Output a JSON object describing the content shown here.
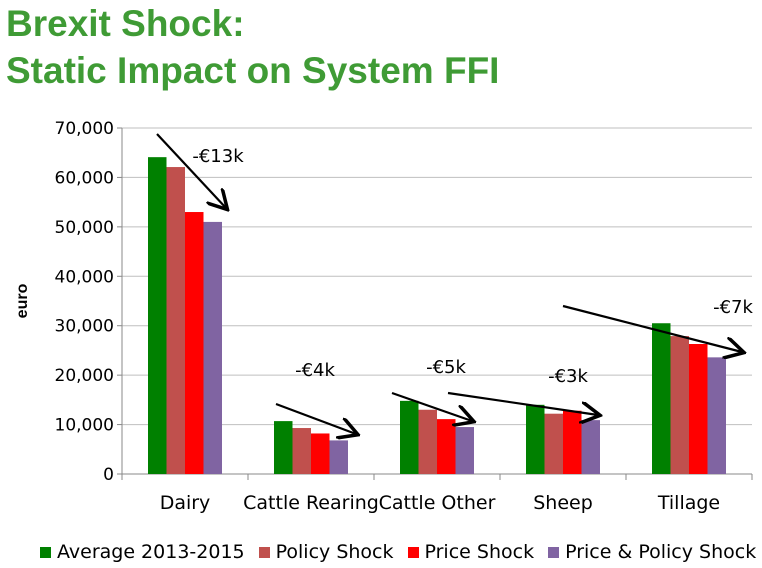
{
  "title_line1": "Brexit Shock:",
  "title_line2": "Static Impact on System FFI",
  "chart_data": {
    "type": "bar",
    "title": "Brexit Shock: Static Impact on System FFI",
    "xlabel": "",
    "ylabel": "euro",
    "ylim": [
      0,
      70000
    ],
    "yticks": [
      0,
      10000,
      20000,
      30000,
      40000,
      50000,
      60000,
      70000
    ],
    "ytick_labels": [
      "0",
      "10,000",
      "20,000",
      "30,000",
      "40,000",
      "50,000",
      "60,000",
      "70,000"
    ],
    "grid": true,
    "legend_position": "bottom",
    "categories": [
      "Dairy",
      "Cattle Rearing",
      "Cattle Other",
      "Sheep",
      "Tillage"
    ],
    "series": [
      {
        "name": "Average 2013-2015",
        "color": "#008000",
        "values": [
          64100,
          10700,
          14800,
          14000,
          30500
        ]
      },
      {
        "name": "Policy Shock",
        "color": "#c0504d",
        "values": [
          62100,
          9300,
          13000,
          12200,
          27900
        ]
      },
      {
        "name": "Price Shock",
        "color": "#ff0000",
        "values": [
          53000,
          8200,
          11100,
          12800,
          26300
        ]
      },
      {
        "name": "Price & Policy Shock",
        "color": "#8064a2",
        "values": [
          51000,
          6800,
          9500,
          10900,
          23600
        ]
      }
    ],
    "annotations": [
      "-€13k",
      "-€4k",
      "-€5k",
      "-€3k",
      "-€7k"
    ]
  }
}
